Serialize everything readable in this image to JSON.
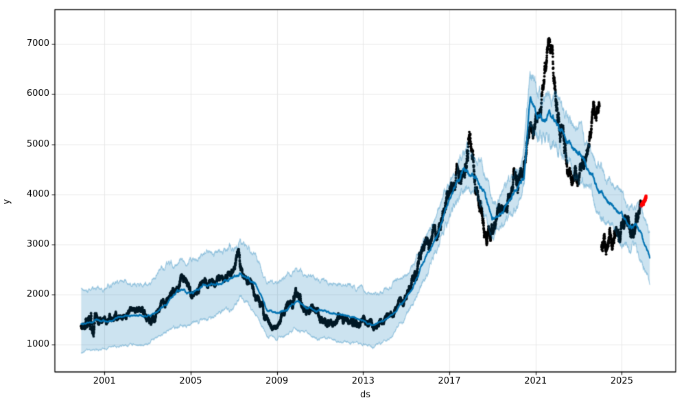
{
  "figure": {
    "background": "#ffffff",
    "title": "",
    "xlabel": "ds",
    "ylabel": "y"
  },
  "chart_data": {
    "type": "scatter",
    "title": "",
    "xlabel": "ds",
    "ylabel": "y",
    "xlim": [
      1998.7,
      2027.5
    ],
    "ylim": [
      450,
      7690
    ],
    "grid": true,
    "legend": "none",
    "x_ticks": [
      {
        "year": 2001,
        "label": "2001"
      },
      {
        "year": 2005,
        "label": "2005"
      },
      {
        "year": 2009,
        "label": "2009"
      },
      {
        "year": 2013,
        "label": "2013"
      },
      {
        "year": 2017,
        "label": "2017"
      },
      {
        "year": 2021,
        "label": "2021"
      },
      {
        "year": 2025,
        "label": "2025"
      }
    ],
    "y_ticks": [
      {
        "value": 1000,
        "label": "1000"
      },
      {
        "value": 2000,
        "label": "2000"
      },
      {
        "value": 3000,
        "label": "3000"
      },
      {
        "value": 4000,
        "label": "4000"
      },
      {
        "value": 5000,
        "label": "5000"
      },
      {
        "value": 6000,
        "label": "6000"
      },
      {
        "value": 7000,
        "label": "7000"
      }
    ],
    "colors": {
      "observed": "#000000",
      "recent": "#ff0000",
      "forecast_line": "#0072B2",
      "band_fill": "rgba(0,114,178,0.2)",
      "band_edge": "rgba(0,114,178,0.35)",
      "grid": "#e8e8e8",
      "spine": "#000000"
    },
    "seed": 20240607,
    "dot_step_years": 0.004,
    "series": [
      {
        "name": "observed",
        "kind": "scatter",
        "color_key": "observed",
        "dot_radius": 1.9,
        "segments": [
          {
            "points": [
              [
                1999.92,
                1400,
                200
              ],
              [
                2000.4,
                1530,
                430
              ],
              [
                2000.7,
                1450,
                200
              ],
              [
                2000.9,
                1400,
                150
              ],
              [
                2001.3,
                1650,
                170
              ],
              [
                2001.7,
                1500,
                130
              ],
              [
                2002.2,
                1620,
                120
              ],
              [
                2002.8,
                1600,
                140
              ],
              [
                2003.2,
                1520,
                190
              ],
              [
                2003.7,
                1780,
                140
              ],
              [
                2004.1,
                2000,
                170
              ],
              [
                2004.55,
                2300,
                180
              ],
              [
                2004.9,
                2150,
                200
              ],
              [
                2005.15,
                2050,
                160
              ],
              [
                2005.5,
                2250,
                140
              ],
              [
                2006.0,
                2200,
                160
              ],
              [
                2006.5,
                2250,
                140
              ],
              [
                2007.0,
                2400,
                170
              ],
              [
                2007.22,
                2800,
                280
              ],
              [
                2007.45,
                2450,
                160
              ],
              [
                2007.8,
                2250,
                140
              ],
              [
                2008.1,
                2000,
                220
              ],
              [
                2008.45,
                1600,
                190
              ],
              [
                2008.7,
                1350,
                130
              ],
              [
                2009.1,
                1500,
                140
              ],
              [
                2009.6,
                1750,
                160
              ],
              [
                2009.85,
                1980,
                200
              ],
              [
                2010.1,
                1900,
                180
              ],
              [
                2010.5,
                1700,
                150
              ],
              [
                2011.2,
                1500,
                160
              ],
              [
                2011.9,
                1500,
                140
              ],
              [
                2012.5,
                1520,
                140
              ],
              [
                2013.1,
                1450,
                150
              ],
              [
                2013.5,
                1350,
                100
              ],
              [
                2013.9,
                1420,
                110
              ],
              [
                2014.3,
                1600,
                140
              ],
              [
                2014.8,
                1850,
                140
              ],
              [
                2015.2,
                2100,
                180
              ],
              [
                2015.6,
                2700,
                260
              ],
              [
                2016.0,
                2950,
                260
              ],
              [
                2016.5,
                3400,
                260
              ],
              [
                2017.0,
                3850,
                300
              ],
              [
                2017.3,
                4350,
                300
              ],
              [
                2017.6,
                4300,
                360
              ],
              [
                2017.9,
                4900,
                460
              ],
              [
                2018.1,
                4500,
                360
              ],
              [
                2018.4,
                3700,
                360
              ],
              [
                2018.7,
                3100,
                260
              ],
              [
                2019.0,
                3100,
                290
              ],
              [
                2019.3,
                3550,
                260
              ],
              [
                2019.7,
                3900,
                260
              ],
              [
                2020.0,
                4350,
                310
              ],
              [
                2020.18,
                3900,
                520
              ],
              [
                2020.45,
                4500,
                230
              ],
              [
                2020.75,
                5100,
                310
              ],
              [
                2021.05,
                5350,
                360
              ],
              [
                2021.3,
                6100,
                360
              ],
              [
                2021.55,
                6600,
                430
              ],
              [
                2021.75,
                6900,
                440
              ],
              [
                2021.95,
                6000,
                520
              ],
              [
                2022.15,
                5200,
                460
              ],
              [
                2022.4,
                4900,
                390
              ],
              [
                2022.7,
                4400,
                330
              ],
              [
                2023.0,
                4500,
                360
              ],
              [
                2023.3,
                4700,
                310
              ],
              [
                2023.55,
                5300,
                310
              ],
              [
                2023.8,
                5650,
                360
              ],
              [
                2023.96,
                5600,
                310
              ]
            ]
          },
          {
            "points": [
              [
                2024.06,
                3100,
                360
              ],
              [
                2024.35,
                3000,
                340
              ],
              [
                2024.7,
                3250,
                340
              ],
              [
                2025.0,
                3350,
                310
              ],
              [
                2025.3,
                3350,
                290
              ],
              [
                2025.55,
                3450,
                330
              ],
              [
                2025.75,
                3650,
                230
              ],
              [
                2025.88,
                3800,
                160
              ]
            ]
          }
        ]
      },
      {
        "name": "recent-actuals",
        "kind": "scatter",
        "color_key": "recent",
        "dot_radius": 2.3,
        "segments": [
          {
            "points": [
              [
                2025.9,
                3750,
                90
              ],
              [
                2026.0,
                3850,
                100
              ],
              [
                2026.12,
                4000,
                80
              ]
            ]
          }
        ]
      },
      {
        "name": "forecast",
        "kind": "line",
        "color_key": "forecast_line",
        "line_width": 2.2,
        "points": [
          [
            1999.92,
            1400
          ],
          [
            2000.3,
            1430
          ],
          [
            2000.7,
            1470
          ],
          [
            2001.1,
            1450
          ],
          [
            2001.5,
            1520
          ],
          [
            2002.0,
            1560
          ],
          [
            2002.5,
            1600
          ],
          [
            2003.0,
            1560
          ],
          [
            2003.5,
            1680
          ],
          [
            2004.0,
            1850
          ],
          [
            2004.4,
            2100
          ],
          [
            2005.0,
            2000
          ],
          [
            2005.5,
            2180
          ],
          [
            2006.0,
            2200
          ],
          [
            2006.5,
            2250
          ],
          [
            2007.0,
            2320
          ],
          [
            2007.3,
            2430
          ],
          [
            2007.6,
            2330
          ],
          [
            2008.0,
            2200
          ],
          [
            2008.3,
            1950
          ],
          [
            2008.55,
            1680
          ],
          [
            2009.0,
            1620
          ],
          [
            2009.5,
            1720
          ],
          [
            2009.9,
            1850
          ],
          [
            2010.4,
            1750
          ],
          [
            2010.8,
            1680
          ],
          [
            2011.2,
            1680
          ],
          [
            2011.6,
            1620
          ],
          [
            2012.0,
            1580
          ],
          [
            2012.5,
            1570
          ],
          [
            2013.0,
            1460
          ],
          [
            2013.45,
            1390
          ],
          [
            2013.9,
            1450
          ],
          [
            2014.3,
            1580
          ],
          [
            2014.8,
            1820
          ],
          [
            2015.2,
            2050
          ],
          [
            2015.6,
            2450
          ],
          [
            2016.0,
            2800
          ],
          [
            2016.5,
            3250
          ],
          [
            2017.0,
            3850
          ],
          [
            2017.4,
            4350
          ],
          [
            2017.75,
            4480
          ],
          [
            2018.1,
            4380
          ],
          [
            2018.5,
            4150
          ],
          [
            2019.0,
            3470
          ],
          [
            2019.4,
            3650
          ],
          [
            2019.8,
            3900
          ],
          [
            2020.2,
            4150
          ],
          [
            2020.45,
            4400
          ],
          [
            2020.75,
            5870
          ],
          [
            2021.1,
            5590
          ],
          [
            2021.5,
            5550
          ],
          [
            2021.9,
            5460
          ],
          [
            2022.1,
            5300
          ],
          [
            2022.65,
            4980
          ],
          [
            2023.1,
            4770
          ],
          [
            2023.5,
            4500
          ],
          [
            2023.85,
            4100
          ],
          [
            2024.3,
            3900
          ],
          [
            2024.8,
            3650
          ],
          [
            2025.25,
            3420
          ],
          [
            2025.6,
            3370
          ],
          [
            2025.9,
            3200
          ],
          [
            2026.05,
            3000
          ],
          [
            2026.3,
            2750
          ]
        ]
      },
      {
        "name": "uncertainty-band",
        "kind": "band",
        "fill_key": "band_fill",
        "edge_key": "band_edge",
        "points": [
          [
            1999.92,
            840,
            2100
          ],
          [
            2001.0,
            900,
            2150
          ],
          [
            2002.0,
            1000,
            2250
          ],
          [
            2003.0,
            1000,
            2200
          ],
          [
            2004.0,
            1300,
            2600
          ],
          [
            2005.0,
            1400,
            2700
          ],
          [
            2006.0,
            1550,
            2800
          ],
          [
            2007.0,
            1750,
            2950
          ],
          [
            2007.3,
            1900,
            3050
          ],
          [
            2008.0,
            1600,
            2800
          ],
          [
            2008.55,
            1150,
            2300
          ],
          [
            2009.0,
            1100,
            2250
          ],
          [
            2009.9,
            1300,
            2450
          ],
          [
            2010.8,
            1150,
            2300
          ],
          [
            2012.0,
            1050,
            2200
          ],
          [
            2013.0,
            1000,
            2100
          ],
          [
            2013.45,
            950,
            2000
          ],
          [
            2014.3,
            1150,
            2150
          ],
          [
            2015.2,
            1700,
            2500
          ],
          [
            2015.6,
            2100,
            2850
          ],
          [
            2016.0,
            2500,
            3200
          ],
          [
            2016.5,
            2950,
            3650
          ],
          [
            2017.0,
            3550,
            4250
          ],
          [
            2017.75,
            4150,
            4900
          ],
          [
            2018.1,
            4050,
            4800
          ],
          [
            2018.5,
            3800,
            4550
          ],
          [
            2019.0,
            3150,
            3850
          ],
          [
            2019.4,
            3300,
            4000
          ],
          [
            2019.8,
            3550,
            4250
          ],
          [
            2020.2,
            3800,
            4500
          ],
          [
            2020.45,
            4050,
            4800
          ],
          [
            2020.75,
            5450,
            6350
          ],
          [
            2021.1,
            5150,
            6050
          ],
          [
            2021.5,
            5100,
            5950
          ],
          [
            2021.9,
            5000,
            5900
          ],
          [
            2022.1,
            4850,
            5750
          ],
          [
            2022.65,
            4550,
            5450
          ],
          [
            2023.1,
            4300,
            5250
          ],
          [
            2023.5,
            4050,
            5000
          ],
          [
            2023.85,
            3650,
            4600
          ],
          [
            2024.3,
            3400,
            4350
          ],
          [
            2024.8,
            3150,
            4100
          ],
          [
            2025.25,
            2950,
            3850
          ],
          [
            2025.6,
            2900,
            3800
          ],
          [
            2025.9,
            2700,
            3650
          ],
          [
            2026.05,
            2550,
            3500
          ],
          [
            2026.3,
            2200,
            3300
          ]
        ]
      }
    ]
  }
}
